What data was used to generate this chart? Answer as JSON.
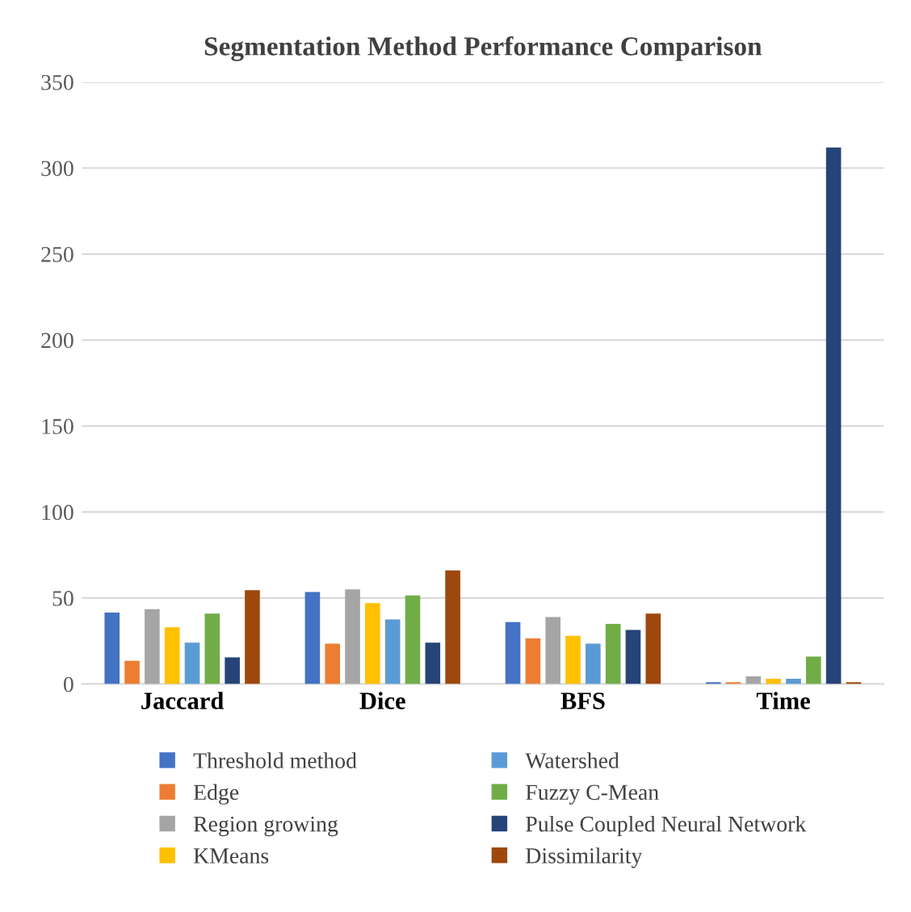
{
  "chart_data": {
    "type": "bar",
    "title": "Segmentation Method Performance Comparison",
    "categories": [
      "Jaccard",
      "Dice",
      "BFS",
      "Time"
    ],
    "series": [
      {
        "name": "Threshold method",
        "color": "#4472c4",
        "values": [
          41.5,
          53.5,
          36,
          1
        ]
      },
      {
        "name": "Edge",
        "color": "#ed7d31",
        "values": [
          13.5,
          23.5,
          26.5,
          1
        ]
      },
      {
        "name": "Region growing",
        "color": "#a5a5a5",
        "values": [
          43.5,
          55,
          39,
          4.5
        ]
      },
      {
        "name": "KMeans",
        "color": "#ffc000",
        "values": [
          33,
          47,
          28,
          3
        ]
      },
      {
        "name": "Watershed",
        "color": "#5b9bd5",
        "values": [
          24,
          37.5,
          23.5,
          3
        ]
      },
      {
        "name": "Fuzzy C-Mean",
        "color": "#70ad47",
        "values": [
          41,
          51.5,
          35,
          16
        ]
      },
      {
        "name": "Pulse Coupled Neural Network",
        "color": "#264478",
        "values": [
          15.5,
          24,
          31.5,
          312
        ]
      },
      {
        "name": "Dissimilarity",
        "color": "#9e480e",
        "values": [
          54.5,
          66,
          41,
          1
        ]
      }
    ],
    "ylim": [
      0,
      350
    ],
    "yticks": [
      0,
      50,
      100,
      150,
      200,
      250,
      300,
      350
    ],
    "grid": "y",
    "legend": "bottom"
  }
}
